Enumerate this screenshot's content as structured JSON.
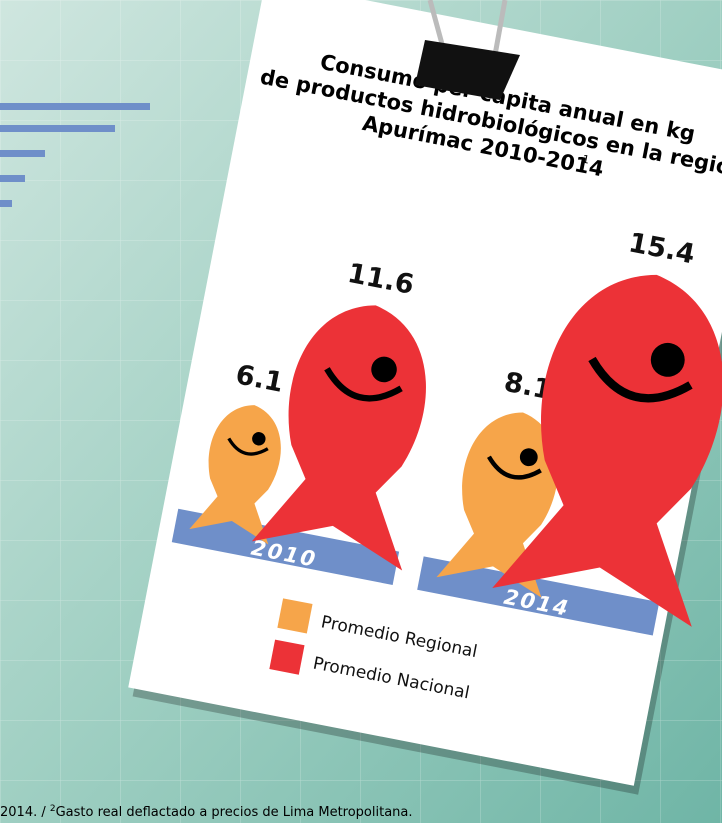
{
  "chart_data": {
    "type": "pictorial-bar",
    "title": [
      "Consumo per cápita anual en kg",
      "de productos hidrobiológicos en la región",
      "Apurímac 2010-2014"
    ],
    "title_note": "1",
    "categories": [
      "2010",
      "2014"
    ],
    "series": [
      {
        "name": "Promedio Regional",
        "color": "#f6a54a",
        "values": [
          6.1,
          8.1
        ]
      },
      {
        "name": "Promedio Nacional",
        "color": "#ec3237",
        "values": [
          11.6,
          15.4
        ]
      }
    ],
    "footnote": {
      "before": "2014. / ",
      "sup": "2",
      "after": "Gasto real deflactado a precios de Lima Metropolitana."
    }
  }
}
